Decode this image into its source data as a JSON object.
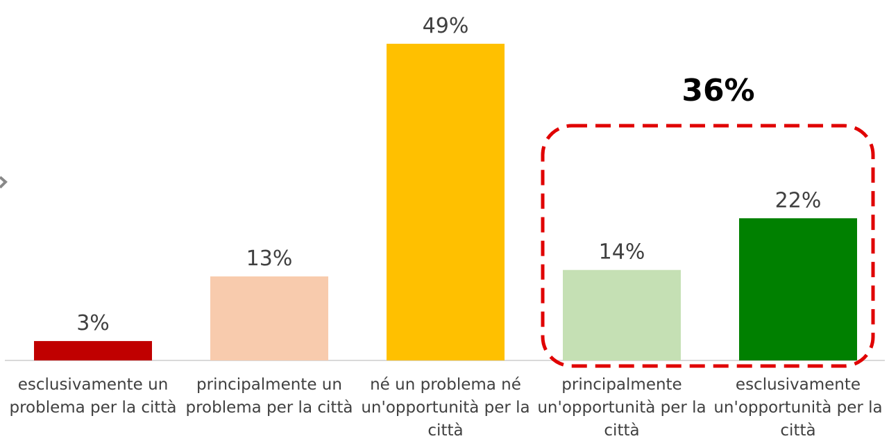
{
  "chart_data": {
    "type": "bar",
    "categories": [
      "esclusivamente un problema per la città",
      "principalmente un problema per la città",
      "né un problema né un'opportunità per la città",
      "principalmente un'opportunità per la città",
      "esclusivamente un'opportunità per la città"
    ],
    "values": [
      3,
      13,
      49,
      14,
      22
    ],
    "value_labels": [
      "3%",
      "13%",
      "49%",
      "14%",
      "22%"
    ],
    "colors": [
      "#c00000",
      "#f8cbad",
      "#ffc000",
      "#c5e0b4",
      "#008000"
    ],
    "annotation": "36%"
  }
}
